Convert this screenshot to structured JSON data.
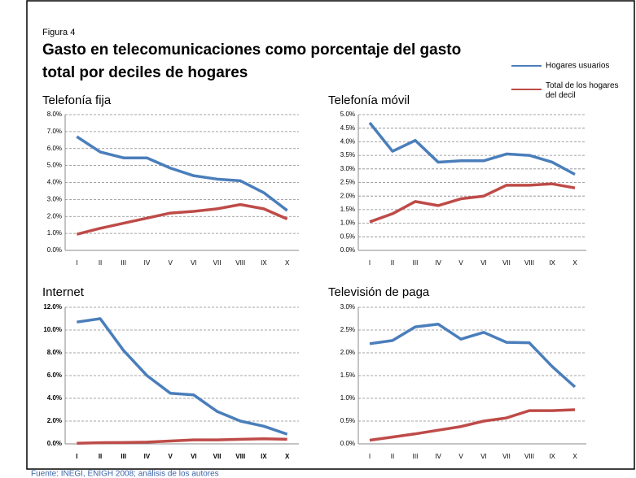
{
  "figure_label": "Figura 4",
  "title_lines": [
    "Gasto en telecomunicaciones como porcentaje del gasto",
    "total por deciles de hogares"
  ],
  "source": "Fuente: INEGI, ENIGH 2008; análisis de los autores",
  "chart_data": [
    {
      "type": "line",
      "title": "Telefonía fija",
      "categories": [
        "I",
        "II",
        "III",
        "IV",
        "V",
        "VI",
        "VII",
        "VIII",
        "IX",
        "X"
      ],
      "series": [
        {
          "name": "Hogares usuarios",
          "color": "#4a7ebb",
          "values": [
            6.7,
            5.8,
            5.45,
            5.45,
            4.85,
            4.4,
            4.2,
            4.1,
            3.4,
            2.35
          ]
        },
        {
          "name": "Total de los hogares del decil",
          "color": "#be4b48",
          "values": [
            0.95,
            1.3,
            1.6,
            1.9,
            2.2,
            2.3,
            2.45,
            2.7,
            2.45,
            1.85
          ]
        }
      ],
      "ylim": [
        0,
        8
      ],
      "yticks": [
        {
          "value": 0,
          "label": "0.0%"
        },
        {
          "value": 1,
          "label": "1.0%"
        },
        {
          "value": 2,
          "label": "2.0%"
        },
        {
          "value": 3,
          "label": "3.0%"
        },
        {
          "value": 4,
          "label": "4.0%"
        },
        {
          "value": 5,
          "label": "5.0%"
        },
        {
          "value": 6,
          "label": "6.0%"
        },
        {
          "value": 7,
          "label": "7.0%"
        },
        {
          "value": 8,
          "label": "8.0%"
        }
      ],
      "grid": true
    },
    {
      "type": "line",
      "title": "Telefonía móvil",
      "categories": [
        "I",
        "II",
        "III",
        "IV",
        "V",
        "VI",
        "VII",
        "VIII",
        "IX",
        "X"
      ],
      "series": [
        {
          "color": "#4a7ebb",
          "values": [
            4.7,
            3.65,
            4.05,
            3.25,
            3.3,
            3.3,
            3.55,
            3.5,
            3.25,
            2.8
          ]
        },
        {
          "color": "#be4b48",
          "values": [
            1.05,
            1.35,
            1.8,
            1.65,
            1.9,
            2.0,
            2.4,
            2.4,
            2.45,
            2.3
          ]
        }
      ],
      "ylim": [
        0,
        5
      ],
      "yticks": [
        {
          "value": 0,
          "label": "0.0%"
        },
        {
          "value": 0.5,
          "label": "0.5%"
        },
        {
          "value": 1,
          "label": "1.0%"
        },
        {
          "value": 1.5,
          "label": "1.5%"
        },
        {
          "value": 2,
          "label": "2.0%"
        },
        {
          "value": 2.5,
          "label": "2.5%"
        },
        {
          "value": 3,
          "label": "3.0%"
        },
        {
          "value": 3.5,
          "label": "3.5%"
        },
        {
          "value": 4,
          "label": "4.0%"
        },
        {
          "value": 4.5,
          "label": "4.5%"
        },
        {
          "value": 5,
          "label": "5.0%"
        }
      ],
      "grid": true
    },
    {
      "type": "line",
      "title": "Internet",
      "categories": [
        "I",
        "II",
        "III",
        "IV",
        "V",
        "VI",
        "VII",
        "VIII",
        "IX",
        "X"
      ],
      "series": [
        {
          "color": "#4a7ebb",
          "values": [
            10.7,
            11.0,
            8.2,
            6.0,
            4.45,
            4.3,
            2.85,
            2.0,
            1.55,
            0.85
          ]
        },
        {
          "color": "#be4b48",
          "values": [
            0.05,
            0.1,
            0.12,
            0.15,
            0.25,
            0.35,
            0.35,
            0.4,
            0.45,
            0.4
          ]
        }
      ],
      "ylim": [
        0,
        12
      ],
      "yticks": [
        {
          "value": 0,
          "label": "0.0%"
        },
        {
          "value": 2,
          "label": "2.0%"
        },
        {
          "value": 4,
          "label": "4.0%"
        },
        {
          "value": 6,
          "label": "6.0%"
        },
        {
          "value": 8,
          "label": "8.0%"
        },
        {
          "value": 10,
          "label": "10.0%"
        },
        {
          "value": 12,
          "label": "12.0%"
        }
      ],
      "grid": true
    },
    {
      "type": "line",
      "title": "Televisión de paga",
      "categories": [
        "I",
        "II",
        "III",
        "IV",
        "V",
        "VI",
        "VII",
        "VIII",
        "IX",
        "X"
      ],
      "series": [
        {
          "color": "#4a7ebb",
          "values": [
            2.2,
            2.27,
            2.57,
            2.63,
            2.3,
            2.45,
            2.23,
            2.22,
            1.7,
            1.25
          ]
        },
        {
          "color": "#be4b48",
          "values": [
            0.08,
            0.15,
            0.22,
            0.3,
            0.38,
            0.5,
            0.57,
            0.73,
            0.73,
            0.75
          ]
        }
      ],
      "ylim": [
        0,
        3
      ],
      "yticks": [
        {
          "value": 0,
          "label": "0.0%"
        },
        {
          "value": 0.5,
          "label": "0.5%"
        },
        {
          "value": 1,
          "label": "1.0%"
        },
        {
          "value": 1.5,
          "label": "1.5%"
        },
        {
          "value": 2,
          "label": "2.0%"
        },
        {
          "value": 2.5,
          "label": "2.5%"
        },
        {
          "value": 3,
          "label": "3.0%"
        }
      ],
      "grid": true
    }
  ]
}
